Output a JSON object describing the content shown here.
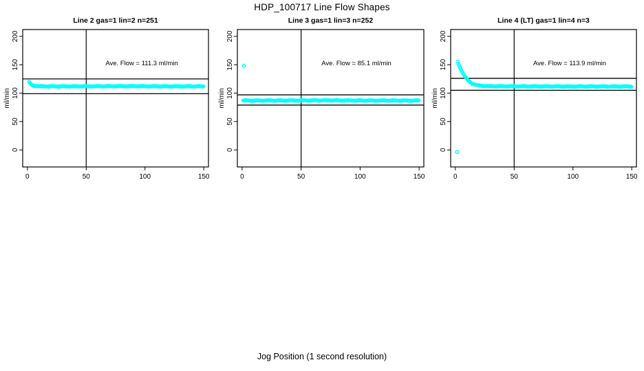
{
  "page": {
    "title": "HDP_100717  Line Flow Shapes",
    "xlabel": "Jog Position (1 second resolution)"
  },
  "colors": {
    "marker": "#00FFFF",
    "axis": "#000000",
    "reference_line": "#000000",
    "background": "#FFFFFF"
  },
  "chart_data": [
    {
      "type": "scatter",
      "title": "Line 2 gas=1 lin=2 n=251",
      "annotation": "Ave. Flow =  111.3  ml/min",
      "ave_flow_ml_min": 111.3,
      "n_points": 251,
      "ylabel": "ml/min",
      "xticks": [
        0,
        50,
        100,
        150
      ],
      "yticks": [
        0,
        50,
        100,
        150,
        200
      ],
      "xlim": [
        -4,
        154
      ],
      "ylim": [
        -30,
        212
      ],
      "vline_x": 50,
      "ref_lines_y": [
        125,
        99
      ],
      "marker": "open-circle",
      "point_step_x": 0.6,
      "annotation_anchor": {
        "x": 97,
        "y": 152
      },
      "profile_points": [
        [
          1.5,
          120
        ],
        [
          2.2,
          117.5
        ],
        [
          3,
          115.5
        ],
        [
          4,
          114
        ],
        [
          5.5,
          113
        ],
        [
          8,
          112.3
        ],
        [
          12,
          112
        ],
        [
          40,
          112
        ],
        [
          80,
          112.3
        ],
        [
          120,
          112
        ],
        [
          150,
          112
        ]
      ],
      "outlier_points": []
    },
    {
      "type": "scatter",
      "title": "Line 3 gas=1 lin=3 n=252",
      "annotation": "Ave. Flow =  85.1  ml/min",
      "ave_flow_ml_min": 85.1,
      "n_points": 252,
      "ylabel": "ml/min",
      "xticks": [
        0,
        50,
        100,
        150
      ],
      "yticks": [
        0,
        50,
        100,
        150,
        200
      ],
      "xlim": [
        -4,
        154
      ],
      "ylim": [
        -30,
        212
      ],
      "vline_x": 50,
      "ref_lines_y": [
        97,
        79
      ],
      "marker": "open-circle",
      "point_step_x": 0.6,
      "annotation_anchor": {
        "x": 97,
        "y": 152
      },
      "profile_points": [
        [
          1,
          87
        ],
        [
          30,
          87
        ],
        [
          70,
          87.3
        ],
        [
          110,
          87
        ],
        [
          150,
          87
        ]
      ],
      "outlier_points": [
        [
          1.5,
          148
        ]
      ]
    },
    {
      "type": "scatter",
      "title": "Line 4 (LT) gas=1 lin=4 n=3",
      "annotation": "Ave. Flow =  113.9  ml/min",
      "ave_flow_ml_min": 113.9,
      "n_points": 3,
      "ylabel": "ml/min",
      "xticks": [
        0,
        50,
        100,
        150
      ],
      "yticks": [
        0,
        50,
        100,
        150,
        200
      ],
      "xlim": [
        -4,
        154
      ],
      "ylim": [
        -30,
        212
      ],
      "vline_x": 50,
      "ref_lines_y": [
        126,
        105
      ],
      "marker": "open-circle",
      "point_step_x": 0.6,
      "annotation_anchor": {
        "x": 97,
        "y": 152
      },
      "profile_points": [
        [
          2,
          155
        ],
        [
          3,
          150
        ],
        [
          4,
          145
        ],
        [
          5.5,
          139
        ],
        [
          7,
          133
        ],
        [
          9,
          127
        ],
        [
          11,
          122
        ],
        [
          13.5,
          118
        ],
        [
          16,
          115.5
        ],
        [
          19,
          113.8
        ],
        [
          23,
          112.8
        ],
        [
          30,
          112.2
        ],
        [
          60,
          112
        ],
        [
          100,
          111.8
        ],
        [
          150,
          111.8
        ]
      ],
      "outlier_points": [
        [
          1.5,
          -3.5
        ]
      ]
    }
  ]
}
